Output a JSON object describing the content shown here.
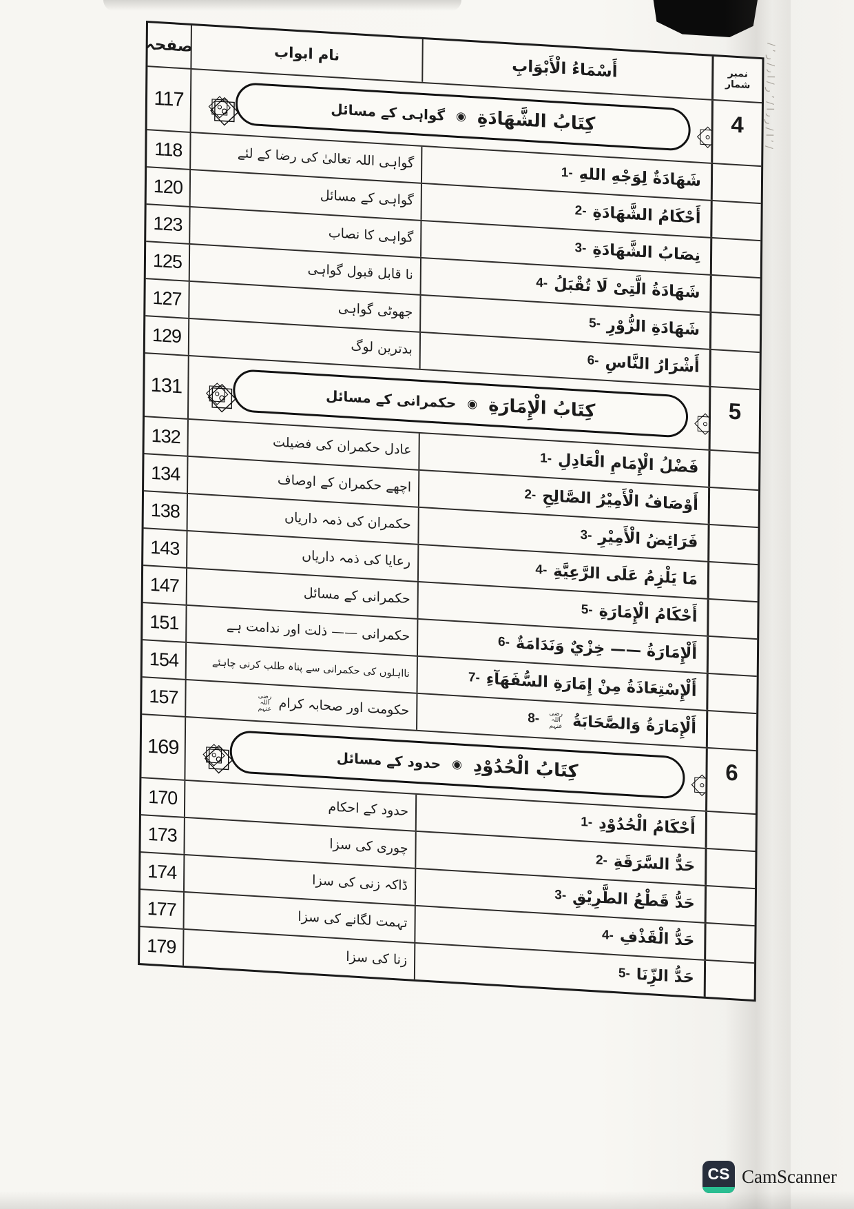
{
  "ornament_glyph": "۞",
  "edge_marks": "/ ٬ ا / ر ٫ ا / ٬ ر / ا ٫ / ر ٬ /",
  "watermark": {
    "icon_text": "CS",
    "label": "CamScanner",
    "icon_bg": "#272e3c",
    "icon_accent": "#2abd91"
  },
  "toc": {
    "headers": {
      "page": "صفحہ",
      "urdu": "نام ابواب",
      "arabic": "أَسْمَاءُ الْأَبْوَابِ",
      "serial": "نمبر شمار"
    },
    "sections": [
      {
        "serial": "4",
        "page": "117",
        "arabic_title": "كِتَابُ الشَّهَادَةِ",
        "bullet": "◉",
        "urdu_title": "گواہی کے مسائل",
        "entries": [
          {
            "page": "118",
            "urdu": "گواہی اللہ تعالیٰ کی رضا کے لئے",
            "num": "1-",
            "arabic": "شَهَادَةٌ لِوَجْهِ اللهِ"
          },
          {
            "page": "120",
            "urdu": "گواہی کے مسائل",
            "num": "2-",
            "arabic": "أَحْكَامُ الشَّهَادَةِ"
          },
          {
            "page": "123",
            "urdu": "گواہی کا نصاب",
            "num": "3-",
            "arabic": "نِصَابُ الشَّهَادَةِ"
          },
          {
            "page": "125",
            "urdu": "نا قابل قبول گواہی",
            "num": "4-",
            "arabic": "شَهَادَةُ الَّتِیْ لَا تُقْبَلُ"
          },
          {
            "page": "127",
            "urdu": "جھوٹی گواہی",
            "num": "5-",
            "arabic": "شَهَادَةِ الزُّوْرِ"
          },
          {
            "page": "129",
            "urdu": "بدترین لوگ",
            "num": "6-",
            "arabic": "أَشْرَارُ النَّاسِ"
          }
        ]
      },
      {
        "serial": "5",
        "page": "131",
        "arabic_title": "كِتَابُ الْإِمَارَةِ",
        "bullet": "◉",
        "urdu_title": "حکمرانی کے مسائل",
        "entries": [
          {
            "page": "132",
            "urdu": "عادل حکمران کی فضیلت",
            "num": "1-",
            "arabic": "فَضْلُ الْإِمَامِ الْعَادِلِ"
          },
          {
            "page": "134",
            "urdu": "اچھے حکمران کے اوصاف",
            "num": "2-",
            "arabic": "أَوْصَافُ الْأَمِيْرُ الصَّالِحِ"
          },
          {
            "page": "138",
            "urdu": "حکمران کی ذمہ داریاں",
            "num": "3-",
            "arabic": "فَرَائِضُ الْأَمِيْرِ"
          },
          {
            "page": "143",
            "urdu": "رعایا کی ذمہ داریاں",
            "num": "4-",
            "arabic": "مَا يَلْزِمُ عَلَى الرَّعِيَّةِ"
          },
          {
            "page": "147",
            "urdu": "حکمرانی کے مسائل",
            "num": "5-",
            "arabic": "أَحْكَامُ الْإِمَارَةِ"
          },
          {
            "page": "151",
            "urdu": "حکمرانی —— ذلت اور ندامت ہے",
            "num": "6-",
            "arabic": "أَلْإِمَارَةُ —— خِزْيٌ وَنَدَامَةٌ"
          },
          {
            "page": "154",
            "urdu": "نااہلوں کی حکمرانی سے پناہ طلب کرنی چاہئے",
            "num": "7-",
            "arabic": "أَلْإِسْتِعَاذَةُ مِنْ إِمَارَةِ السُّفَهَآءِ"
          },
          {
            "page": "157",
            "urdu": "حکومت اور صحابہ کرام",
            "urdu_honorific": "رضی اللہ عنہم",
            "num": "8-",
            "arabic": "أَلْإِمَارَةُ وَالصَّحَابَةُ",
            "arabic_honorific": "رضی اللہ عنہم"
          }
        ]
      },
      {
        "serial": "6",
        "page": "169",
        "arabic_title": "كِتَابُ الْحُدُوْدِ",
        "bullet": "◉",
        "urdu_title": "حدود کے مسائل",
        "entries": [
          {
            "page": "170",
            "urdu": "حدود کے احکام",
            "num": "1-",
            "arabic": "أَحْكَامُ الْحُدُوْدِ"
          },
          {
            "page": "173",
            "urdu": "چوری کی سزا",
            "num": "2-",
            "arabic": "حَدُّ السَّرَقَةِ"
          },
          {
            "page": "174",
            "urdu": "ڈاکہ زنی کی سزا",
            "num": "3-",
            "arabic": "حَدُّ قَطْعُ الطَّرِيْقِ"
          },
          {
            "page": "177",
            "urdu": "تہمت لگانے کی سزا",
            "num": "4-",
            "arabic": "حَدُّ الْقَذْفِ"
          },
          {
            "page": "179",
            "urdu": "زنا کی سزا",
            "num": "5-",
            "arabic": "حَدُّ الزِّنَا"
          }
        ]
      }
    ]
  }
}
